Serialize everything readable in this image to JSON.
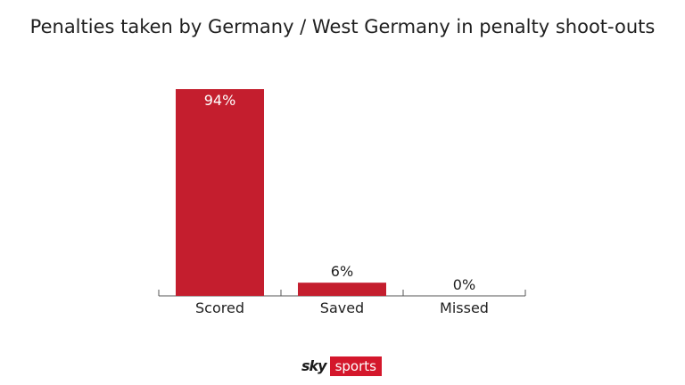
{
  "title": "Penalties taken by Germany / West Germany in penalty shoot-outs",
  "logo": {
    "part1": "sky",
    "part2": "sports"
  },
  "colors": {
    "bar": "#c41e2e",
    "axis": "#555555",
    "text": "#1f1f1f"
  },
  "chart_data": {
    "type": "bar",
    "title": "Penalties taken by Germany / West Germany in penalty shoot-outs",
    "categories": [
      "Scored",
      "Saved",
      "Missed"
    ],
    "values": [
      94,
      6,
      0
    ],
    "data_labels": [
      "94%",
      "6%",
      "0%"
    ],
    "ylim": [
      0,
      100
    ],
    "xlabel": "",
    "ylabel": "",
    "grid": false,
    "legend": "none"
  }
}
